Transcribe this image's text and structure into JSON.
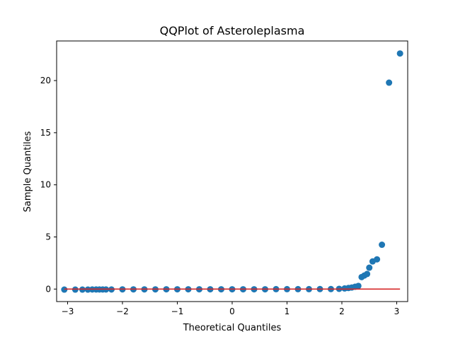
{
  "chart_data": {
    "type": "scatter",
    "title": "QQPlot of Asteroleplasma",
    "xlabel": "Theoretical Quantiles",
    "ylabel": "Sample Quantiles",
    "xlim": [
      -3.2,
      3.2
    ],
    "ylim": [
      -1.2,
      23.8
    ],
    "xticks": [
      -3,
      -2,
      -1,
      0,
      1,
      2,
      3
    ],
    "xtick_labels": [
      "−3",
      "−2",
      "−1",
      "0",
      "1",
      "2",
      "3"
    ],
    "yticks": [
      0,
      5,
      10,
      15,
      20
    ],
    "ytick_labels": [
      "0",
      "5",
      "10",
      "15",
      "20"
    ],
    "grid": false,
    "legend": "none",
    "series": [
      {
        "kind": "points",
        "color": "#1f77b4",
        "points": [
          {
            "x": -3.06,
            "y": -0.05
          },
          {
            "x": -2.86,
            "y": -0.05
          },
          {
            "x": -2.73,
            "y": -0.05
          },
          {
            "x": -2.63,
            "y": -0.05
          },
          {
            "x": -2.55,
            "y": -0.04
          },
          {
            "x": -2.48,
            "y": -0.04
          },
          {
            "x": -2.42,
            "y": -0.04
          },
          {
            "x": -2.36,
            "y": -0.04
          },
          {
            "x": -2.3,
            "y": -0.04
          },
          {
            "x": -2.2,
            "y": -0.04
          },
          {
            "x": -2.0,
            "y": -0.03
          },
          {
            "x": -1.8,
            "y": -0.03
          },
          {
            "x": -1.6,
            "y": -0.03
          },
          {
            "x": -1.4,
            "y": -0.03
          },
          {
            "x": -1.2,
            "y": -0.02
          },
          {
            "x": -1.0,
            "y": -0.02
          },
          {
            "x": -0.8,
            "y": -0.02
          },
          {
            "x": -0.6,
            "y": -0.02
          },
          {
            "x": -0.4,
            "y": -0.02
          },
          {
            "x": -0.2,
            "y": -0.02
          },
          {
            "x": 0.0,
            "y": -0.02
          },
          {
            "x": 0.2,
            "y": -0.02
          },
          {
            "x": 0.4,
            "y": -0.02
          },
          {
            "x": 0.6,
            "y": -0.02
          },
          {
            "x": 0.8,
            "y": -0.01
          },
          {
            "x": 1.0,
            "y": -0.01
          },
          {
            "x": 1.2,
            "y": -0.01
          },
          {
            "x": 1.4,
            "y": -0.01
          },
          {
            "x": 1.6,
            "y": 0.0
          },
          {
            "x": 1.8,
            "y": 0.0
          },
          {
            "x": 1.95,
            "y": 0.02
          },
          {
            "x": 2.05,
            "y": 0.06
          },
          {
            "x": 2.12,
            "y": 0.1
          },
          {
            "x": 2.18,
            "y": 0.15
          },
          {
            "x": 2.24,
            "y": 0.22
          },
          {
            "x": 2.3,
            "y": 0.3
          },
          {
            "x": 2.36,
            "y": 1.15
          },
          {
            "x": 2.41,
            "y": 1.3
          },
          {
            "x": 2.46,
            "y": 1.45
          },
          {
            "x": 2.5,
            "y": 2.05
          },
          {
            "x": 2.56,
            "y": 2.65
          },
          {
            "x": 2.64,
            "y": 2.85
          },
          {
            "x": 2.73,
            "y": 4.25
          },
          {
            "x": 2.86,
            "y": 19.8
          },
          {
            "x": 3.06,
            "y": 22.6
          }
        ]
      },
      {
        "kind": "line",
        "color": "#d62728",
        "points": [
          {
            "x": -3.06,
            "y": 0.0
          },
          {
            "x": 3.06,
            "y": 0.0
          }
        ]
      }
    ]
  }
}
